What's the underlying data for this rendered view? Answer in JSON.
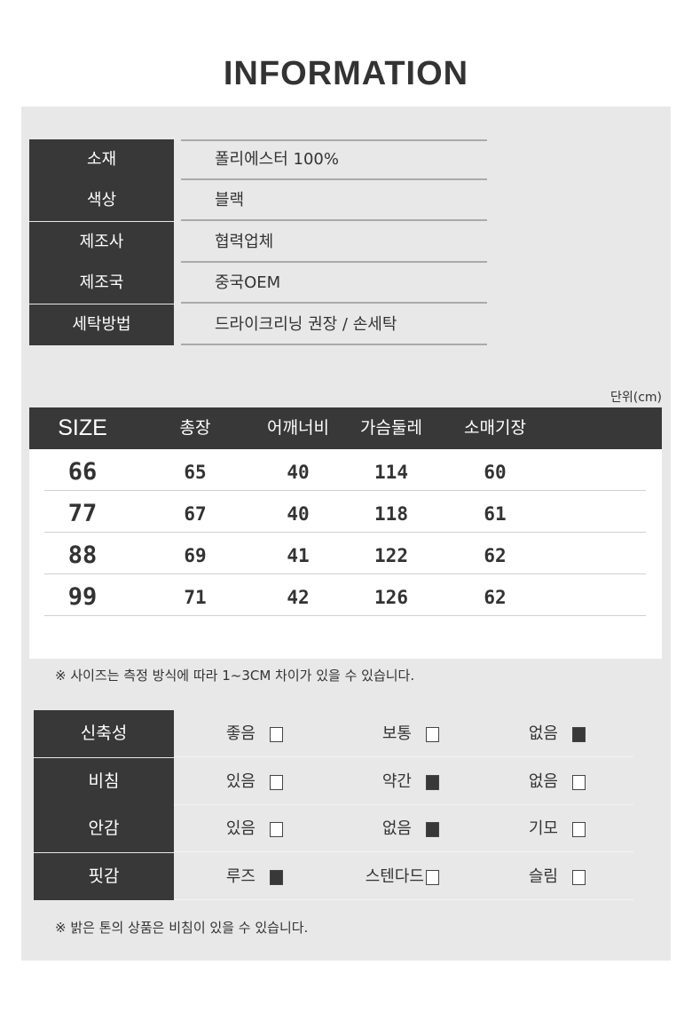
{
  "title": "INFORMATION",
  "info": [
    {
      "label": "소재",
      "value": "폴리에스터 100%"
    },
    {
      "label": "색상",
      "value": "블랙"
    },
    {
      "label": "제조사",
      "value": "협력업체"
    },
    {
      "label": "제조국",
      "value": "중국OEM"
    },
    {
      "label": "세탁방법",
      "value": "드라이크리닝 권장 / 손세탁"
    }
  ],
  "size_table": {
    "unit": "단위(cm)",
    "headers": [
      "SIZE",
      "총장",
      "어깨너비",
      "가슴둘레",
      "소매기장"
    ],
    "rows": [
      [
        "66",
        "65",
        "40",
        "114",
        "60"
      ],
      [
        "77",
        "67",
        "40",
        "118",
        "61"
      ],
      [
        "88",
        "69",
        "41",
        "122",
        "62"
      ],
      [
        "99",
        "71",
        "42",
        "126",
        "62"
      ]
    ],
    "note": "※ 사이즈는 측정 방식에 따라 1~3CM 차이가 있을 수 있습니다."
  },
  "characteristics": {
    "rows": [
      {
        "label": "신축성",
        "options": [
          {
            "text": "좋음",
            "checked": false
          },
          {
            "text": "보통",
            "checked": false
          },
          {
            "text": "없음",
            "checked": true
          }
        ]
      },
      {
        "label": "비침",
        "options": [
          {
            "text": "있음",
            "checked": false
          },
          {
            "text": "약간",
            "checked": true
          },
          {
            "text": "없음",
            "checked": false
          }
        ]
      },
      {
        "label": "안감",
        "options": [
          {
            "text": "있음",
            "checked": false
          },
          {
            "text": "없음",
            "checked": true
          },
          {
            "text": "기모",
            "checked": false
          }
        ]
      },
      {
        "label": "핏감",
        "options": [
          {
            "text": "루즈",
            "checked": true
          },
          {
            "text": "스텐다드",
            "checked": false
          },
          {
            "text": "슬림",
            "checked": false
          }
        ]
      }
    ],
    "note": "※ 밝은 톤의 상품은 비침이 있을 수 있습니다."
  },
  "colors": {
    "dark": "#383838",
    "panel": "#e8e8e8"
  }
}
